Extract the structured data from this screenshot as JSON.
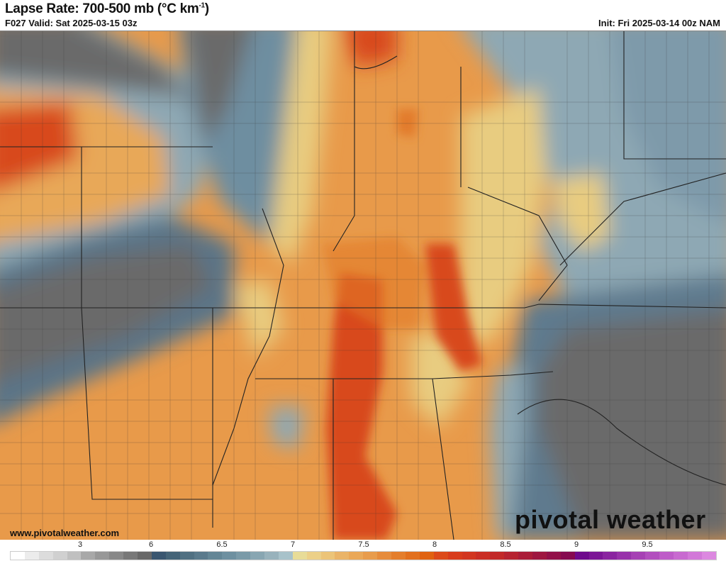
{
  "header": {
    "title": "Lapse Rate: 700-500 mb (°C km",
    "title_unit_sup": "-1",
    "title_close": ")",
    "valid": "F027 Valid: Sat 2025-03-15 03z",
    "init": "Init: Fri 2025-03-14 00z NAM"
  },
  "watermark": {
    "url": "www.pivotalweather.com",
    "logo": "pivotal weather"
  },
  "colorbar": {
    "labels": [
      "3",
      "6",
      "6.5",
      "7",
      "7.5",
      "8",
      "8.5",
      "9",
      "9.5"
    ],
    "colors": [
      "#ffffff",
      "#ececec",
      "#dcdcdc",
      "#d0d0d0",
      "#c0c0c0",
      "#a8a8a8",
      "#989898",
      "#888888",
      "#787878",
      "#686868",
      "#3a5670",
      "#456478",
      "#507082",
      "#5a7a8c",
      "#648696",
      "#6e90a0",
      "#7a9aa8",
      "#88a6b2",
      "#98b2bc",
      "#a8c2ca",
      "#e8dc98",
      "#ecd088",
      "#ecc478",
      "#eab468",
      "#eaa858",
      "#e89c4c",
      "#e68c3c",
      "#e47e2c",
      "#e2701e",
      "#e06210",
      "#dc4a1a",
      "#d83c1c",
      "#d23620",
      "#ca2e24",
      "#c22828",
      "#b62230",
      "#aa1c38",
      "#9e1640",
      "#921048",
      "#860a50",
      "#6e0a8c",
      "#7c1696",
      "#8a24a0",
      "#9832aa",
      "#a640b4",
      "#b24ebe",
      "#be5cc8",
      "#c86ad0",
      "#d278d8",
      "#dc88e0"
    ]
  },
  "map": {
    "fill_colors": {
      "gray": "#6a6a6a",
      "blue_dark": "#4e6a80",
      "blue_light": "#8ea8b4",
      "yellow": "#e8cc80",
      "orange": "#e89a4a",
      "orange_dark": "#e27a2a",
      "red": "#d8481c"
    }
  }
}
